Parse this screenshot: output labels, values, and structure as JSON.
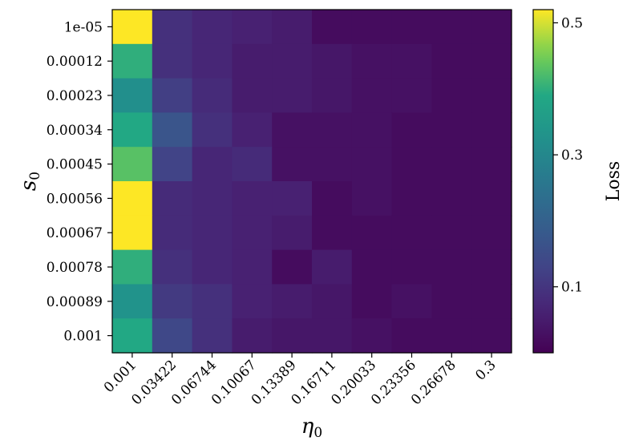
{
  "chart_data": {
    "type": "heatmap",
    "title": "",
    "xlabel": "η",
    "xlabel_subscript": "0",
    "ylabel": "s",
    "ylabel_subscript": "0",
    "x_categories": [
      "0.001",
      "0.03422",
      "0.06744",
      "0.10067",
      "0.13389",
      "0.16711",
      "0.20033",
      "0.23356",
      "0.26678",
      "0.3"
    ],
    "y_categories": [
      "1e-05",
      "0.00012",
      "0.00023",
      "0.00034",
      "0.00045",
      "0.00056",
      "0.00067",
      "0.00078",
      "0.00089",
      "0.001"
    ],
    "values": [
      [
        0.52,
        0.09,
        0.07,
        0.06,
        0.05,
        0.02,
        0.02,
        0.02,
        0.02,
        0.02
      ],
      [
        0.4,
        0.09,
        0.07,
        0.05,
        0.05,
        0.04,
        0.03,
        0.03,
        0.02,
        0.02
      ],
      [
        0.32,
        0.12,
        0.08,
        0.05,
        0.05,
        0.04,
        0.03,
        0.03,
        0.02,
        0.02
      ],
      [
        0.39,
        0.17,
        0.09,
        0.06,
        0.03,
        0.03,
        0.03,
        0.02,
        0.02,
        0.02
      ],
      [
        0.43,
        0.13,
        0.07,
        0.08,
        0.03,
        0.03,
        0.03,
        0.02,
        0.02,
        0.02
      ],
      [
        0.52,
        0.08,
        0.07,
        0.06,
        0.06,
        0.02,
        0.03,
        0.02,
        0.02,
        0.02
      ],
      [
        0.52,
        0.08,
        0.07,
        0.06,
        0.05,
        0.02,
        0.02,
        0.02,
        0.02,
        0.02
      ],
      [
        0.4,
        0.09,
        0.07,
        0.06,
        0.02,
        0.05,
        0.02,
        0.02,
        0.02,
        0.02
      ],
      [
        0.33,
        0.11,
        0.09,
        0.06,
        0.05,
        0.04,
        0.02,
        0.03,
        0.02,
        0.02
      ],
      [
        0.39,
        0.14,
        0.09,
        0.05,
        0.04,
        0.04,
        0.03,
        0.02,
        0.02,
        0.02
      ]
    ],
    "colormap": "viridis",
    "color_range": [
      0.0,
      0.52
    ],
    "colorbar": {
      "label": "Loss",
      "ticks": [
        0.1,
        0.3,
        0.5
      ],
      "tick_labels": [
        "0.1",
        "0.3",
        "0.5"
      ]
    }
  }
}
